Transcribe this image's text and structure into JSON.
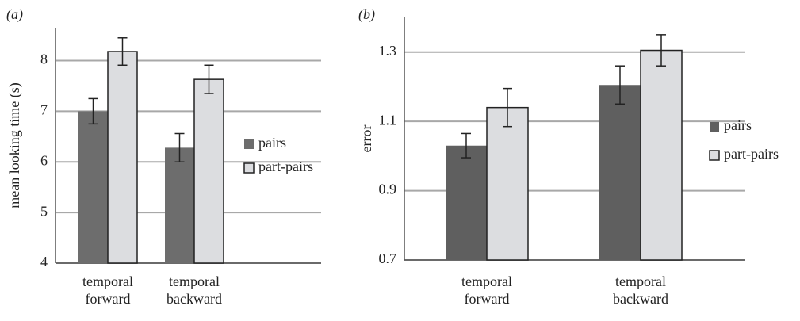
{
  "chart_data": [
    {
      "type": "bar",
      "title": "(a)",
      "ylabel": "mean looking time (s)",
      "categories": [
        "temporal forward",
        "temporal backward"
      ],
      "series": [
        {
          "name": "pairs",
          "color": "#6d6d6d",
          "values": [
            7.0,
            6.28
          ],
          "errors": [
            0.25,
            0.28
          ]
        },
        {
          "name": "part-pairs",
          "color": "#dcdde0",
          "values": [
            8.18,
            7.63
          ],
          "errors": [
            0.27,
            0.28
          ]
        }
      ],
      "ylim": [
        4,
        8.65
      ],
      "yticks": [
        4,
        5,
        6,
        7,
        8
      ],
      "grid": true
    },
    {
      "type": "bar",
      "title": "(b)",
      "ylabel": "error",
      "categories": [
        "temporal forward",
        "temporal backward"
      ],
      "series": [
        {
          "name": "pairs",
          "color": "#5f5f5f",
          "values": [
            1.03,
            1.205
          ],
          "errors": [
            0.035,
            0.055
          ]
        },
        {
          "name": "part-pairs",
          "color": "#dcdde0",
          "values": [
            1.14,
            1.305
          ],
          "errors": [
            0.055,
            0.045
          ]
        }
      ],
      "ylim": [
        0.7,
        1.4
      ],
      "yticks": [
        0.7,
        0.9,
        1.1,
        1.3
      ],
      "grid": true
    }
  ]
}
